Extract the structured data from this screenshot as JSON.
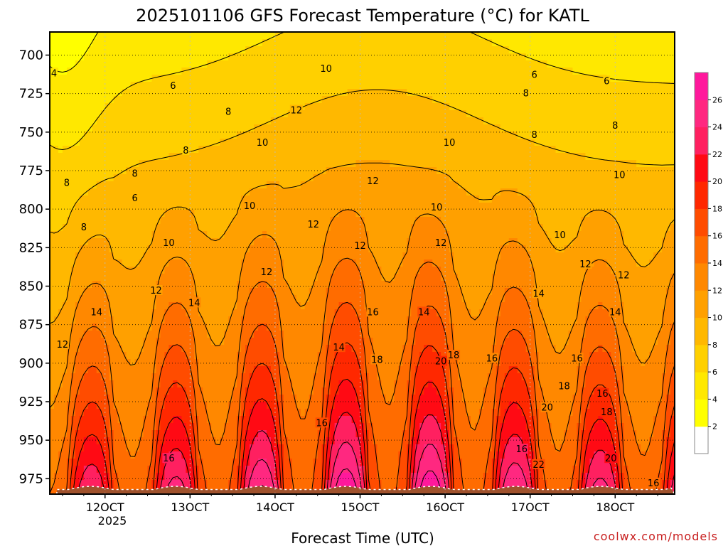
{
  "chart_data": {
    "type": "heatmap",
    "title": "2025101106 GFS Forecast Temperature (°C) for KATL",
    "xlabel": "Forecast Time (UTC)",
    "ylabel": "",
    "credit": "coolwx.com/models",
    "x_ticks": [
      "12OCT",
      "13OCT",
      "14OCT",
      "15OCT",
      "16OCT",
      "17OCT",
      "18OCT"
    ],
    "x_subtitle": "2025",
    "x_day_values": [
      12,
      13,
      14,
      15,
      16,
      17,
      18
    ],
    "x_range_days": [
      11.35,
      18.7
    ],
    "y_ticks": [
      700,
      725,
      750,
      775,
      800,
      825,
      850,
      875,
      900,
      925,
      950,
      975
    ],
    "y_range_hpa": [
      685,
      985
    ],
    "surface_pressure_hpa": 982,
    "colorbar": {
      "ticks": [
        2,
        4,
        6,
        8,
        10,
        12,
        14,
        16,
        18,
        20,
        22,
        24,
        26
      ],
      "levels": [
        0,
        2,
        4,
        6,
        8,
        10,
        12,
        14,
        16,
        18,
        20,
        22,
        24,
        26,
        28
      ],
      "colors": [
        "#ffffff",
        "#ffff00",
        "#ffe800",
        "#ffd000",
        "#ffb800",
        "#ffa000",
        "#ff8800",
        "#ff6c00",
        "#ff4c00",
        "#ff2800",
        "#ff0a14",
        "#ff2060",
        "#ff2880",
        "#ff189c"
      ]
    },
    "surface_color": "#a0522d",
    "contour_labels": [
      {
        "v": "4",
        "t": 11.4,
        "p": 712
      },
      {
        "v": "6",
        "t": 12.35,
        "p": 793
      },
      {
        "v": "6",
        "t": 12.8,
        "p": 720
      },
      {
        "v": "8",
        "t": 11.55,
        "p": 783
      },
      {
        "v": "8",
        "t": 11.75,
        "p": 812
      },
      {
        "v": "8",
        "t": 12.35,
        "p": 777
      },
      {
        "v": "8",
        "t": 12.95,
        "p": 762
      },
      {
        "v": "8",
        "t": 13.45,
        "p": 737
      },
      {
        "v": "10",
        "t": 12.75,
        "p": 822
      },
      {
        "v": "10",
        "t": 13.7,
        "p": 798
      },
      {
        "v": "10",
        "t": 13.85,
        "p": 757
      },
      {
        "v": "10",
        "t": 14.6,
        "p": 709
      },
      {
        "v": "12",
        "t": 14.25,
        "p": 736
      },
      {
        "v": "12",
        "t": 13.9,
        "p": 841
      },
      {
        "v": "12",
        "t": 14.45,
        "p": 810
      },
      {
        "v": "12",
        "t": 15.15,
        "p": 782
      },
      {
        "v": "12",
        "t": 15.0,
        "p": 824
      },
      {
        "v": "12",
        "t": 12.6,
        "p": 853
      },
      {
        "v": "12",
        "t": 11.5,
        "p": 888
      },
      {
        "v": "10",
        "t": 16.05,
        "p": 757
      },
      {
        "v": "10",
        "t": 15.9,
        "p": 799
      },
      {
        "v": "12",
        "t": 15.95,
        "p": 822
      },
      {
        "v": "14",
        "t": 11.9,
        "p": 867
      },
      {
        "v": "14",
        "t": 13.05,
        "p": 861
      },
      {
        "v": "14",
        "t": 14.75,
        "p": 890
      },
      {
        "v": "16",
        "t": 15.15,
        "p": 867
      },
      {
        "v": "18",
        "t": 15.2,
        "p": 898
      },
      {
        "v": "16",
        "t": 14.55,
        "p": 939
      },
      {
        "v": "14",
        "t": 15.75,
        "p": 867
      },
      {
        "v": "20",
        "t": 15.95,
        "p": 899
      },
      {
        "v": "18",
        "t": 16.1,
        "p": 895
      },
      {
        "v": "16",
        "t": 16.55,
        "p": 897
      },
      {
        "v": "16",
        "t": 12.75,
        "p": 962
      },
      {
        "v": "14",
        "t": 17.1,
        "p": 855
      },
      {
        "v": "6",
        "t": 17.05,
        "p": 713
      },
      {
        "v": "6",
        "t": 17.9,
        "p": 717
      },
      {
        "v": "8",
        "t": 16.95,
        "p": 725
      },
      {
        "v": "8",
        "t": 17.05,
        "p": 752
      },
      {
        "v": "8",
        "t": 18.0,
        "p": 746
      },
      {
        "v": "10",
        "t": 17.35,
        "p": 817
      },
      {
        "v": "10",
        "t": 18.05,
        "p": 778
      },
      {
        "v": "12",
        "t": 17.65,
        "p": 836
      },
      {
        "v": "12",
        "t": 18.1,
        "p": 843
      },
      {
        "v": "14",
        "t": 18.0,
        "p": 867
      },
      {
        "v": "16",
        "t": 17.55,
        "p": 897
      },
      {
        "v": "16",
        "t": 17.85,
        "p": 920
      },
      {
        "v": "18",
        "t": 17.4,
        "p": 915
      },
      {
        "v": "18",
        "t": 17.9,
        "p": 932
      },
      {
        "v": "20",
        "t": 17.2,
        "p": 929
      },
      {
        "v": "20",
        "t": 17.95,
        "p": 962
      },
      {
        "v": "16",
        "t": 16.9,
        "p": 956
      },
      {
        "v": "22",
        "t": 17.1,
        "p": 966
      },
      {
        "v": "16",
        "t": 18.45,
        "p": 978
      }
    ]
  }
}
